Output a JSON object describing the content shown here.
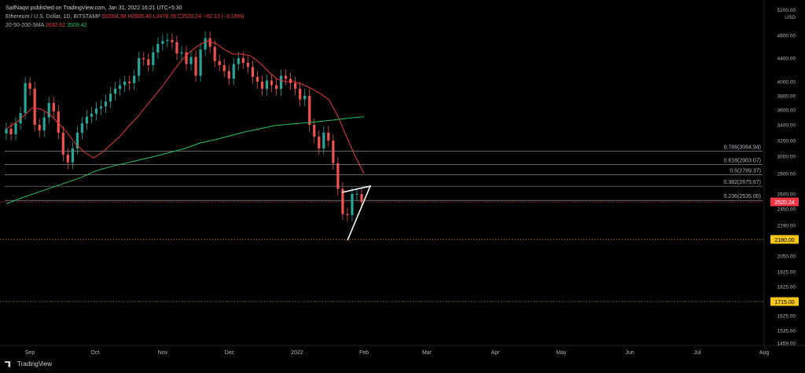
{
  "header": {
    "publisher": "SaifNaqvi published on TradingView.com, Jan 31, 2022 16:21 UTC+5:30",
    "symbol": "Ethereum / U.S. Dollar, 1D, BITSTAMP",
    "ohlc": "O2604.38  H2605.40  L2479.78  C2520.24  −82.13 (−3.16%)",
    "sma_label": "20-50-200-SMA",
    "sma_20_value": "2632.61",
    "sma_200_value": "3509.42"
  },
  "footer": {
    "brand": "TradingView"
  },
  "colors": {
    "up": "#26a69a",
    "down": "#ef5350",
    "sma20": "#e53935",
    "sma200": "#22c55e",
    "price_tag": "#f23645",
    "level_tag": "#f5c518",
    "fib_line": "#888888"
  },
  "chart_data": {
    "type": "candlestick",
    "currency_label": "USD",
    "y_axis": {
      "top_label": "5200.00",
      "ticks": [
        4800,
        4400,
        4000,
        3800,
        3600,
        3400,
        3200,
        3000,
        2800,
        2600,
        2450,
        2290,
        2050,
        1925,
        1825,
        1625,
        1535,
        1459
      ]
    },
    "x_axis": {
      "months": [
        "Sep",
        "Oct",
        "Nov",
        "Dec",
        "2022",
        "Feb",
        "Mar",
        "Apr",
        "May",
        "Jun",
        "Jul",
        "Aug"
      ]
    },
    "last_price": "2520.24",
    "support_levels": [
      "2180.00",
      "1715.00"
    ],
    "fib_levels": [
      {
        "ratio": "0.786",
        "price": "3064.94",
        "label": "0.786(3064.94)"
      },
      {
        "ratio": "0.618",
        "price": "2903.07",
        "label": "0.618(2903.07)"
      },
      {
        "ratio": "0.5",
        "price": "2789.37",
        "label": "0.5(2789.37)"
      },
      {
        "ratio": "0.382",
        "price": "2675.67",
        "label": "0.382(2675.67)"
      },
      {
        "ratio": "0.236",
        "price": "2535.00",
        "label": "0.236(2535.00)"
      }
    ],
    "series": [
      {
        "name": "20 SMA",
        "values": [
          3350,
          3420,
          3520,
          3630,
          3610,
          3540,
          3420,
          3300,
          3150,
          3050,
          2980,
          3050,
          3150,
          3250,
          3380,
          3500,
          3650,
          3800,
          3950,
          4150,
          4350,
          4500,
          4620,
          4700,
          4660,
          4550,
          4470,
          4470,
          4440,
          4330,
          4180,
          4050,
          4000,
          4000,
          3960,
          3900,
          3830,
          3740,
          3520,
          3250,
          3000,
          2800
        ]
      },
      {
        "name": "200 SMA",
        "values": [
          2500,
          2560,
          2610,
          2660,
          2710,
          2760,
          2830,
          2880,
          2920,
          2960,
          3000,
          3050,
          3100,
          3170,
          3210,
          3260,
          3310,
          3350,
          3390,
          3410,
          3425,
          3445,
          3465,
          3490,
          3510
        ]
      }
    ],
    "candles_close": [
      3350,
      3280,
      3420,
      3560,
      3980,
      3900,
      3400,
      3330,
      3500,
      3700,
      3580,
      3300,
      3020,
      2930,
      3100,
      3300,
      3420,
      3510,
      3550,
      3620,
      3650,
      3720,
      3830,
      3900,
      3950,
      4000,
      3980,
      4100,
      4400,
      4380,
      4280,
      4500,
      4650,
      4700,
      4720,
      4680,
      4480,
      4500,
      4300,
      4420,
      4100,
      4550,
      4750,
      4600,
      4350,
      4280,
      4180,
      4050,
      4300,
      4400,
      4320,
      4250,
      4080,
      4000,
      3900,
      4020,
      3950,
      3900,
      4100,
      4050,
      3980,
      3900,
      3750,
      3800,
      3400,
      3250,
      3100,
      3300,
      3200,
      2920,
      2650,
      2400,
      2390,
      2600,
      2600,
      2520
    ]
  }
}
